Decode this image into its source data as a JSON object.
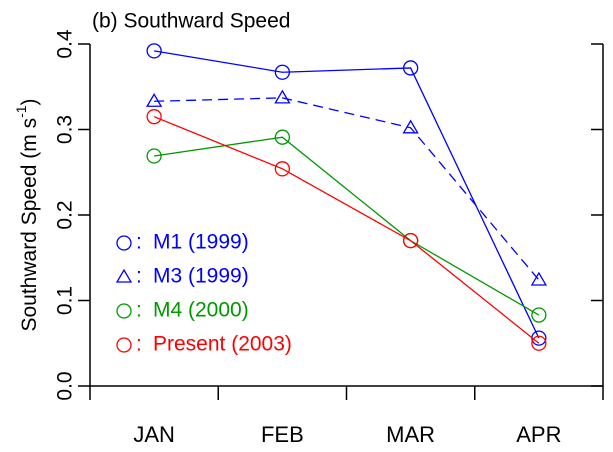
{
  "chart_data": {
    "type": "line",
    "title": "(b) Southward Speed",
    "ylabel": [
      "Southward Speed (m s",
      "-1",
      ")"
    ],
    "categories": [
      "JAN",
      "FEB",
      "MAR",
      "APR"
    ],
    "legend_separator": ":",
    "series": [
      {
        "name": "M1 (1999)",
        "color": "#0000ff",
        "marker": "circle",
        "dash": false,
        "values": [
          0.392,
          0.367,
          0.372,
          0.056
        ]
      },
      {
        "name": "M3 (1999)",
        "color": "#0000ff",
        "marker": "triangle",
        "dash": true,
        "values": [
          0.333,
          0.337,
          0.302,
          0.124
        ]
      },
      {
        "name": "M4 (2000)",
        "color": "#009900",
        "marker": "circle",
        "dash": false,
        "values": [
          0.269,
          0.291,
          0.17,
          0.083
        ]
      },
      {
        "name": "Present (2003)",
        "color": "#ff0000",
        "marker": "circle",
        "dash": false,
        "values": [
          0.315,
          0.254,
          0.17,
          0.05
        ]
      }
    ],
    "ylim": [
      0,
      0.4
    ],
    "yticks": [
      {
        "value": 0,
        "label": "0.0"
      },
      0.1,
      0.2,
      0.3,
      0.4
    ],
    "legend": "bottom-left"
  }
}
